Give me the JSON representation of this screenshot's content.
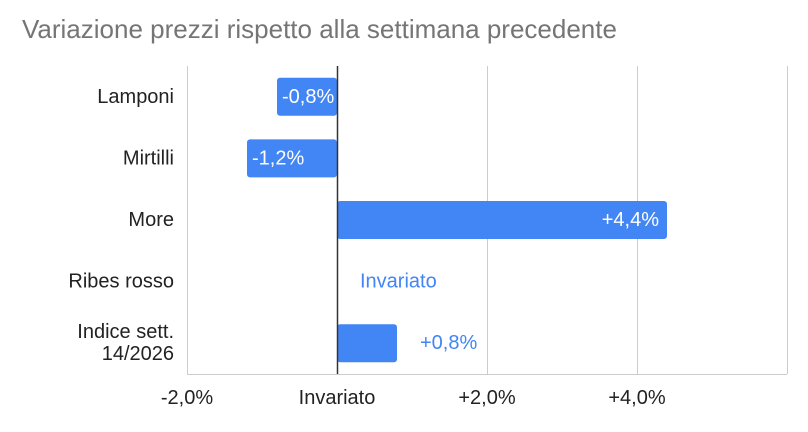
{
  "chart_data": {
    "type": "bar",
    "orientation": "horizontal",
    "title": "Variazione prezzi rispetto alla settimana precedente",
    "xlabel": "",
    "ylabel": "",
    "xlim": [
      -2.0,
      6.0
    ],
    "x_ticks": [
      {
        "value": -2.0,
        "label": "-2,0%"
      },
      {
        "value": 0.0,
        "label": "Invariato"
      },
      {
        "value": 2.0,
        "label": "+2,0%"
      },
      {
        "value": 4.0,
        "label": "+4,0%"
      }
    ],
    "grid": true,
    "legend": "none",
    "bar_color": "#4285f4",
    "categories": [
      {
        "label": [
          "Lamponi"
        ],
        "value": -0.8,
        "data_label": "-0,8%"
      },
      {
        "label": [
          "Mirtilli"
        ],
        "value": -1.2,
        "data_label": "-1,2%"
      },
      {
        "label": [
          "More"
        ],
        "value": 4.4,
        "data_label": "+4,4%"
      },
      {
        "label": [
          "Ribes rosso"
        ],
        "value": 0.0,
        "data_label": "Invariato"
      },
      {
        "label": [
          "Indice sett.",
          "14/2026"
        ],
        "value": 0.8,
        "data_label": "+0,8%"
      }
    ]
  }
}
